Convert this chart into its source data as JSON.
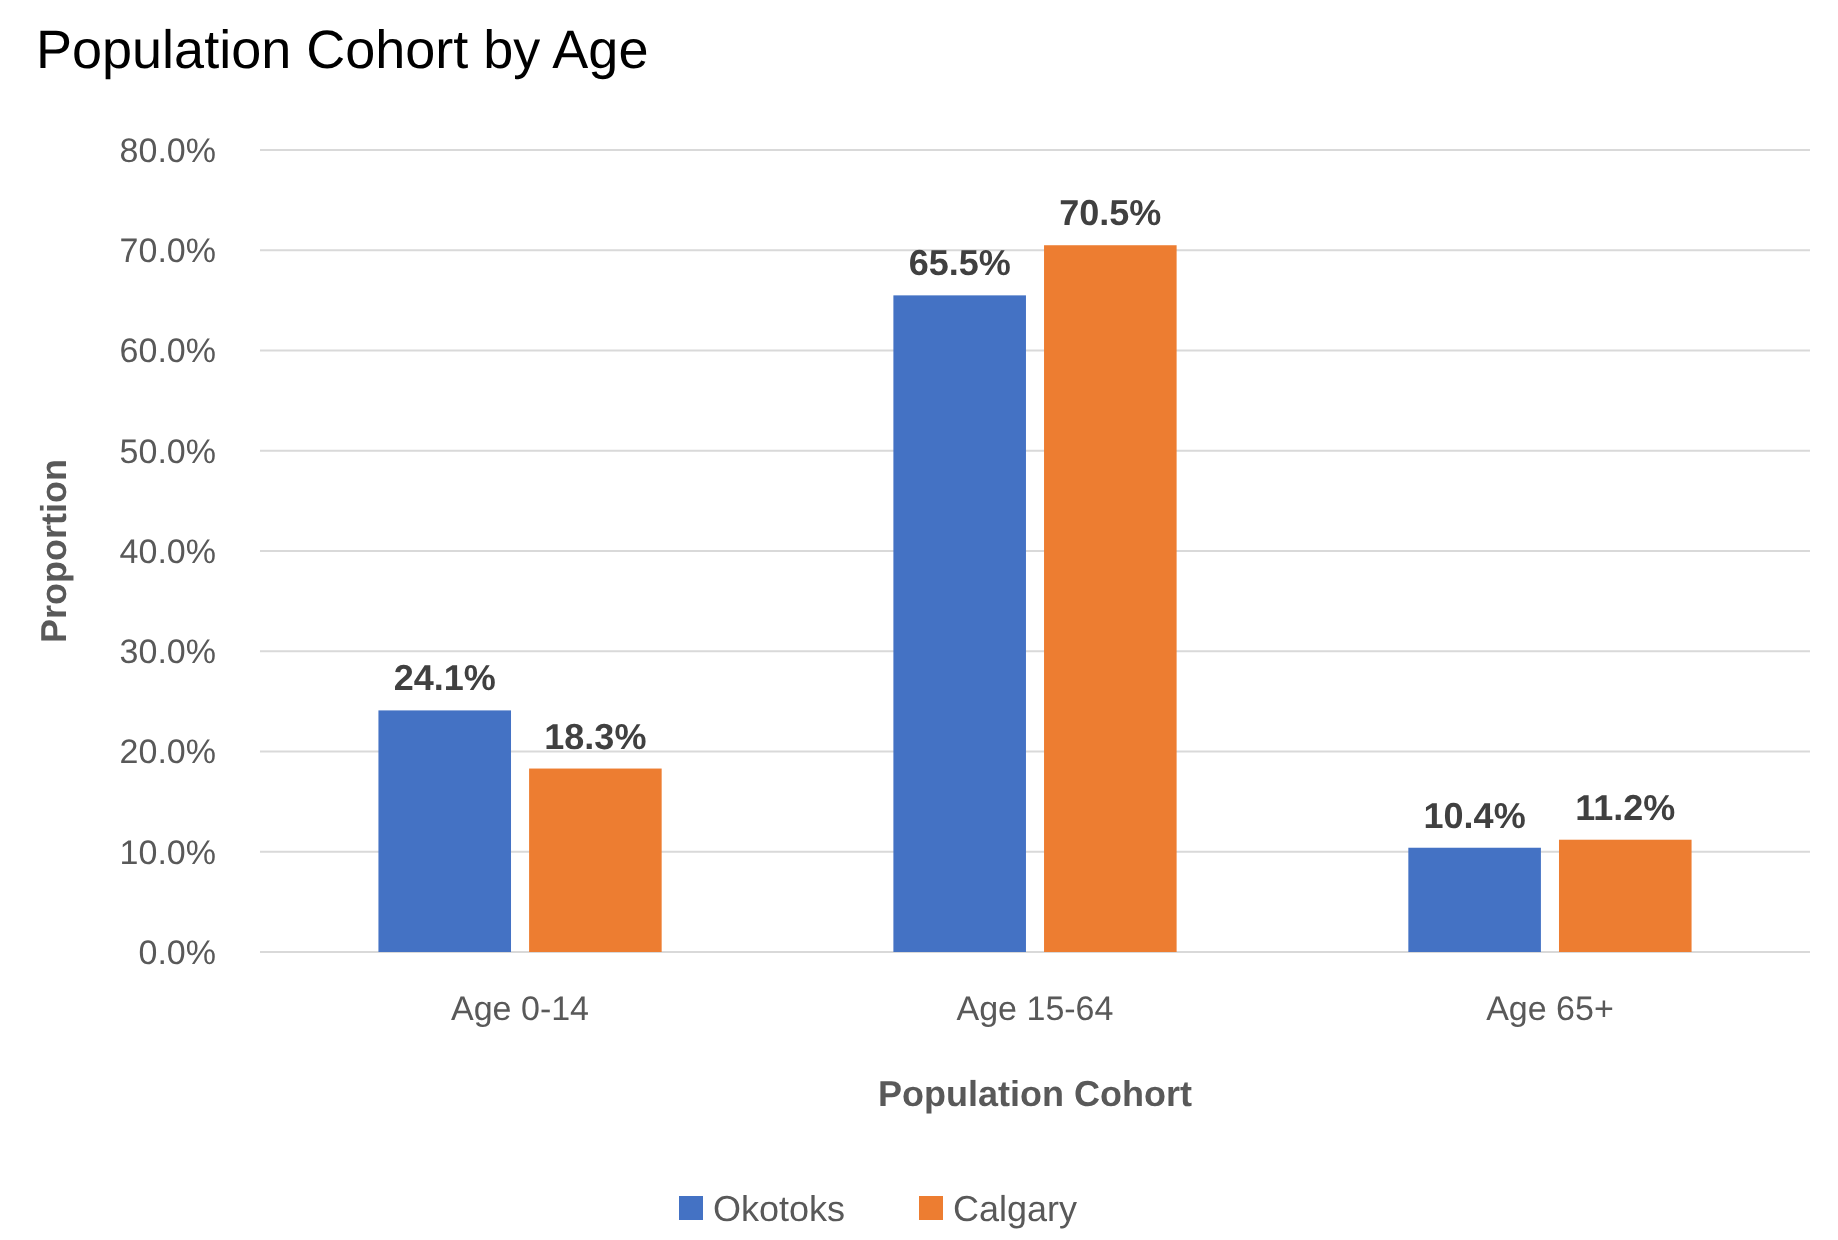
{
  "chart_data": {
    "type": "bar",
    "title": "Population Cohort by Age",
    "xlabel": "Population Cohort",
    "ylabel": "Proportion",
    "categories": [
      "Age 0-14",
      "Age 15-64",
      "Age 65+"
    ],
    "series": [
      {
        "name": "Okotoks",
        "color": "#4472c4",
        "values": [
          24.1,
          65.5,
          10.4
        ],
        "value_labels": [
          "24.1%",
          "65.5%",
          "10.4%"
        ]
      },
      {
        "name": "Calgary",
        "color": "#ed7d31",
        "values": [
          18.3,
          70.5,
          11.2
        ],
        "value_labels": [
          "18.3%",
          "70.5%",
          "11.2%"
        ]
      }
    ],
    "ylim": [
      0,
      80
    ],
    "yticks": [
      {
        "value": 0,
        "label": "0.0%"
      },
      {
        "value": 10,
        "label": "10.0%"
      },
      {
        "value": 20,
        "label": "20.0%"
      },
      {
        "value": 30,
        "label": "30.0%"
      },
      {
        "value": 40,
        "label": "40.0%"
      },
      {
        "value": 50,
        "label": "50.0%"
      },
      {
        "value": 60,
        "label": "60.0%"
      },
      {
        "value": 70,
        "label": "70.0%"
      },
      {
        "value": 80,
        "label": "80.0%"
      }
    ],
    "grid": "y",
    "legend": "bottom"
  }
}
